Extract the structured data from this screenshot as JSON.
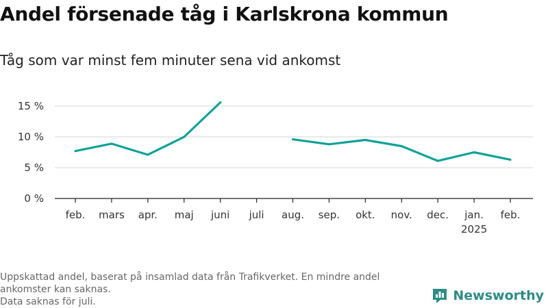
{
  "title": "Andel försenade tåg i Karlskrona kommun",
  "subtitle": "Tåg som var minst fem minuter sena vid ankomst",
  "footer": {
    "line1": "Uppskattad andel, baserat på insamlad data från Trafikverket. En mindre andel ankomster kan saknas.",
    "line2": "Data saknas för juli."
  },
  "brand": {
    "name": "Newsworthy",
    "icon": "newsworthy-logo-icon",
    "color": "#2e8b85"
  },
  "chart_data": {
    "type": "line",
    "title": "Andel försenade tåg i Karlskrona kommun",
    "subtitle": "Tåg som var minst fem minuter sena vid ankomst",
    "categories": [
      "feb.",
      "mars",
      "apr.",
      "maj",
      "juni",
      "juli",
      "aug.",
      "sep.",
      "okt.",
      "nov.",
      "dec.",
      "jan.",
      "feb."
    ],
    "year_labels": [
      "",
      "",
      "",
      "",
      "",
      "",
      "",
      "",
      "",
      "",
      "",
      "2025",
      ""
    ],
    "series": [
      {
        "values": [
          7.7,
          8.9,
          7.1,
          10.0,
          15.6,
          null,
          9.6,
          8.8,
          9.5,
          8.5,
          6.1,
          7.5,
          6.3
        ]
      }
    ],
    "yticks": [
      0,
      5,
      10,
      15
    ],
    "ytick_labels": [
      "0 %",
      "5 %",
      "10 %",
      "15 %"
    ],
    "ylim": [
      0,
      15
    ],
    "grid": true,
    "color": "#0ea297",
    "gridColor": "#dddddd",
    "axisColor": "#222222"
  }
}
